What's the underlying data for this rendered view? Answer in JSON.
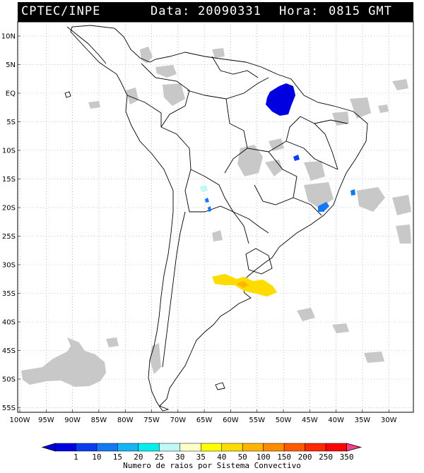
{
  "header": {
    "source": "CPTEC/INPE",
    "date_label": "Data:",
    "date_value": "20090331",
    "time_label": "Hora:",
    "time_value": "0815 GMT"
  },
  "map": {
    "lat_labels": [
      "10N",
      "5N",
      "EQ",
      "5S",
      "10S",
      "15S",
      "20S",
      "25S",
      "30S",
      "35S",
      "40S",
      "45S",
      "50S",
      "55S"
    ],
    "lon_labels": [
      "100W",
      "95W",
      "90W",
      "85W",
      "80W",
      "75W",
      "70W",
      "65W",
      "60W",
      "55W",
      "50W",
      "45W",
      "40W",
      "35W",
      "30W"
    ]
  },
  "legend": {
    "title": "Numero de raios por Sistema Convectivo",
    "labels": [
      "1",
      "10",
      "15",
      "20",
      "25",
      "30",
      "35",
      "40",
      "50",
      "100",
      "150",
      "200",
      "250",
      "350"
    ],
    "colors": [
      "#0000e0",
      "#0a3cf0",
      "#1478f5",
      "#14b4f5",
      "#00f0f0",
      "#c0f8f8",
      "#ffffc8",
      "#ffff00",
      "#ffdc00",
      "#ffb400",
      "#ff8c00",
      "#ff5a00",
      "#ff2800",
      "#ff0000",
      "#ff3c8c"
    ]
  }
}
